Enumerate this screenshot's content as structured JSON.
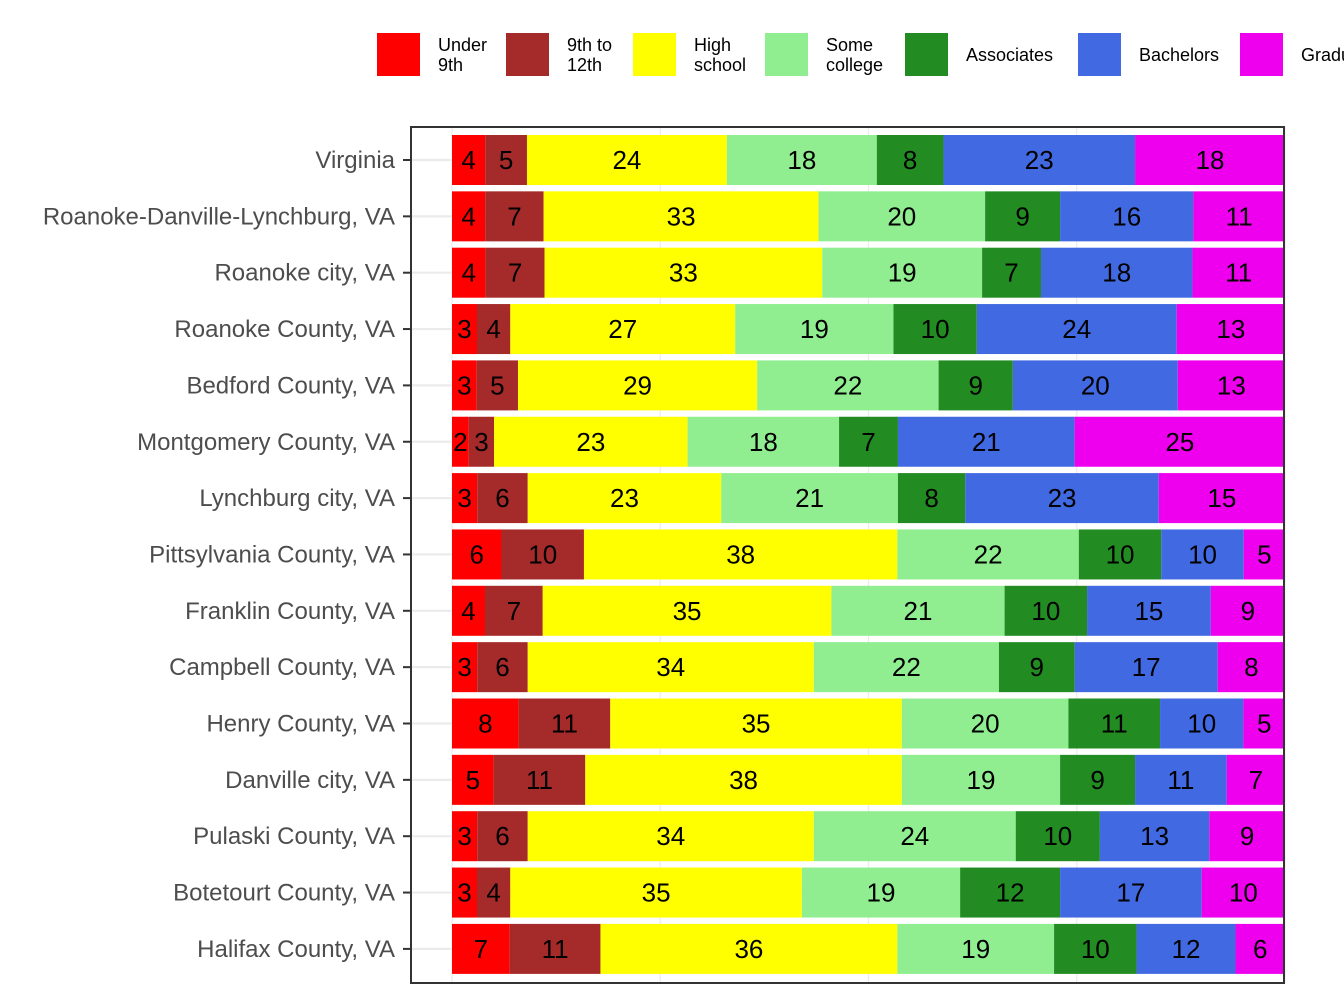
{
  "chart_data": {
    "type": "bar",
    "orientation": "horizontal",
    "stacked": true,
    "grid": true,
    "legend_position": "top",
    "categories": [
      "Virginia",
      "Roanoke-Danville-Lynchburg, VA",
      "Roanoke city, VA",
      "Roanoke County, VA",
      "Bedford County, VA",
      "Montgomery County, VA",
      "Lynchburg city, VA",
      "Pittsylvania County, VA",
      "Franklin County, VA",
      "Campbell County, VA",
      "Henry County, VA",
      "Danville city, VA",
      "Pulaski County, VA",
      "Botetourt County, VA",
      "Halifax County, VA"
    ],
    "series": [
      {
        "name": "Under\n9th",
        "color": "#FF0000",
        "values": [
          4,
          4,
          4,
          3,
          3,
          2,
          3,
          6,
          4,
          3,
          8,
          5,
          3,
          3,
          7
        ]
      },
      {
        "name": "9th to\n12th",
        "color": "#A52A2A",
        "values": [
          5,
          7,
          7,
          4,
          5,
          3,
          6,
          10,
          7,
          6,
          11,
          11,
          6,
          4,
          11
        ]
      },
      {
        "name": "High\nschool",
        "color": "#FFFF00",
        "values": [
          24,
          33,
          33,
          27,
          29,
          23,
          23,
          38,
          35,
          34,
          35,
          38,
          34,
          35,
          36
        ]
      },
      {
        "name": "Some\ncollege",
        "color": "#90EE90",
        "values": [
          18,
          20,
          19,
          19,
          22,
          18,
          21,
          22,
          21,
          22,
          20,
          19,
          24,
          19,
          19
        ]
      },
      {
        "name": "Associates",
        "color": "#228B22",
        "values": [
          8,
          9,
          7,
          10,
          9,
          7,
          8,
          10,
          10,
          9,
          11,
          9,
          10,
          12,
          10
        ]
      },
      {
        "name": "Bachelors",
        "color": "#4169E1",
        "values": [
          23,
          16,
          18,
          24,
          20,
          21,
          23,
          10,
          15,
          17,
          10,
          11,
          13,
          17,
          12
        ]
      },
      {
        "name": "Graduate",
        "color": "#EE00EE",
        "values": [
          18,
          11,
          11,
          13,
          13,
          25,
          15,
          5,
          9,
          8,
          5,
          7,
          9,
          10,
          6
        ]
      }
    ],
    "title": "",
    "xlabel": "",
    "ylabel": ""
  }
}
